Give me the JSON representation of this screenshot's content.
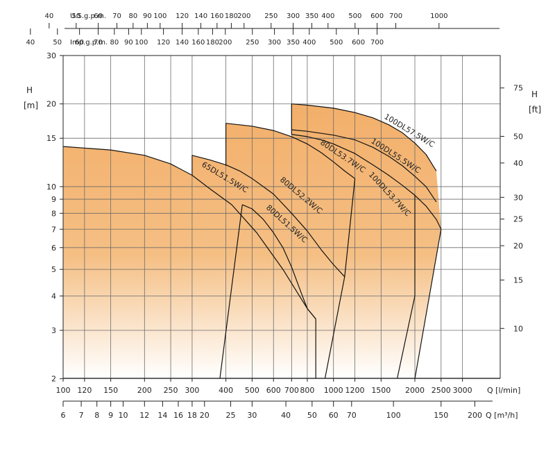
{
  "chart_data": {
    "type": "line",
    "title": "",
    "x_scale": "log",
    "y_scale": "log",
    "xlabel": "Q [l/min]",
    "ylabel": "H [m]",
    "ylabel_right": "H [ft]",
    "xlim": [
      100,
      3800
    ],
    "ylim": [
      2,
      30
    ],
    "x_ticks": [
      {
        "label": "100",
        "value": 100
      },
      {
        "label": "120",
        "value": 120
      },
      {
        "label": "150",
        "value": 150
      },
      {
        "label": "200",
        "value": 200
      },
      {
        "label": "250",
        "value": 250
      },
      {
        "label": "300",
        "value": 300
      },
      {
        "label": "400",
        "value": 400
      },
      {
        "label": "500",
        "value": 500
      },
      {
        "label": "600",
        "value": 600
      },
      {
        "label": "700",
        "value": 700
      },
      {
        "label": "800",
        "value": 800
      },
      {
        "label": "1000",
        "value": 1000
      },
      {
        "label": "1200",
        "value": 1200
      },
      {
        "label": "1500",
        "value": 1500
      },
      {
        "label": "2000",
        "value": 2000
      },
      {
        "label": "2500",
        "value": 2500
      },
      {
        "label": "3000",
        "value": 3000
      }
    ],
    "y_ticks": [
      {
        "label": "2",
        "value": 2
      },
      {
        "label": "3",
        "value": 3
      },
      {
        "label": "4",
        "value": 4
      },
      {
        "label": "5",
        "value": 5
      },
      {
        "label": "6",
        "value": 6
      },
      {
        "label": "7",
        "value": 7
      },
      {
        "label": "8",
        "value": 8
      },
      {
        "label": "9",
        "value": 9
      },
      {
        "label": "10",
        "value": 10
      },
      {
        "label": "15",
        "value": 15
      },
      {
        "label": "20",
        "value": 20
      },
      {
        "label": "30",
        "value": 30
      }
    ],
    "right_ticks": [
      {
        "label": "10",
        "value": 10
      },
      {
        "label": "15",
        "value": 15
      },
      {
        "label": "20",
        "value": 20
      },
      {
        "label": "25",
        "value": 25
      },
      {
        "label": "30",
        "value": 30
      },
      {
        "label": "40",
        "value": 40
      },
      {
        "label": "50",
        "value": 50
      },
      {
        "label": "75",
        "value": 75
      }
    ],
    "m3h_label": "Q [m³/h]",
    "m3h_ticks": [
      {
        "label": "6",
        "value": 6
      },
      {
        "label": "7",
        "value": 7
      },
      {
        "label": "8",
        "value": 8
      },
      {
        "label": "9",
        "value": 9
      },
      {
        "label": "10",
        "value": 10
      },
      {
        "label": "12",
        "value": 12
      },
      {
        "label": "14",
        "value": 14
      },
      {
        "label": "16",
        "value": 16
      },
      {
        "label": "18",
        "value": 18
      },
      {
        "label": "20",
        "value": 20
      },
      {
        "label": "25",
        "value": 25
      },
      {
        "label": "30",
        "value": 30
      },
      {
        "label": "40",
        "value": 40
      },
      {
        "label": "50",
        "value": 50
      },
      {
        "label": "60",
        "value": 60
      },
      {
        "label": "70",
        "value": 70
      },
      {
        "label": "100",
        "value": 100
      },
      {
        "label": "150",
        "value": 150
      },
      {
        "label": "200",
        "value": 200
      }
    ],
    "usgpm_label": "U.S.g.p.m.",
    "usgpm_ticks": [
      {
        "label": "40",
        "value": 40
      },
      {
        "label": "50",
        "value": 50
      },
      {
        "label": "60",
        "value": 60
      },
      {
        "label": "70",
        "value": 70
      },
      {
        "label": "80",
        "value": 80
      },
      {
        "label": "90",
        "value": 90
      },
      {
        "label": "100",
        "value": 100
      },
      {
        "label": "120",
        "value": 120
      },
      {
        "label": "140",
        "value": 140
      },
      {
        "label": "160",
        "value": 160
      },
      {
        "label": "180",
        "value": 180
      },
      {
        "label": "200",
        "value": 200
      },
      {
        "label": "250",
        "value": 250
      },
      {
        "label": "300",
        "value": 300
      },
      {
        "label": "350",
        "value": 350
      },
      {
        "label": "400",
        "value": 400
      },
      {
        "label": "500",
        "value": 500
      },
      {
        "label": "600",
        "value": 600
      },
      {
        "label": "700",
        "value": 700
      },
      {
        "label": "1000",
        "value": 1000
      }
    ],
    "impgpm_label": "Imp.g.p.m.",
    "impgpm_ticks": [
      {
        "label": "40",
        "value": 40
      },
      {
        "label": "50",
        "value": 50
      },
      {
        "label": "60",
        "value": 60
      },
      {
        "label": "70",
        "value": 70
      },
      {
        "label": "80",
        "value": 80
      },
      {
        "label": "90",
        "value": 90
      },
      {
        "label": "100",
        "value": 100
      },
      {
        "label": "120",
        "value": 120
      },
      {
        "label": "140",
        "value": 140
      },
      {
        "label": "160",
        "value": 160
      },
      {
        "label": "180",
        "value": 180
      },
      {
        "label": "200",
        "value": 200
      },
      {
        "label": "250",
        "value": 250
      },
      {
        "label": "300",
        "value": 300
      },
      {
        "label": "350",
        "value": 350
      },
      {
        "label": "400",
        "value": 400
      },
      {
        "label": "500",
        "value": 500
      },
      {
        "label": "600",
        "value": 600
      },
      {
        "label": "700",
        "value": 700
      }
    ],
    "series": [
      {
        "name": "65DL51.5W/C",
        "q": [
          100,
          150,
          200,
          250,
          300,
          350,
          420,
          520,
          650,
          800,
          860
        ],
        "h": [
          14,
          13.6,
          13.0,
          12.1,
          11.0,
          9.8,
          8.6,
          6.8,
          5.0,
          3.6,
          3.3
        ]
      },
      {
        "name": "80DL51.5W/C",
        "q": [
          460,
          500,
          550,
          600,
          650,
          700,
          760,
          800,
          860
        ],
        "h": [
          8.6,
          8.3,
          7.6,
          6.8,
          6.0,
          5.1,
          4.1,
          3.6,
          3.3
        ]
      },
      {
        "name": "80DL52.2W/C",
        "q": [
          300,
          350,
          400,
          450,
          500,
          600,
          700,
          800,
          900,
          1000,
          1100
        ],
        "h": [
          13.0,
          12.5,
          12.0,
          11.4,
          10.7,
          9.4,
          8.0,
          6.9,
          5.9,
          5.2,
          4.7
        ]
      },
      {
        "name": "80DL53.7W/C",
        "q": [
          400,
          500,
          600,
          700,
          800,
          900,
          1000,
          1100,
          1200
        ],
        "h": [
          17.0,
          16.6,
          16.0,
          15.2,
          14.3,
          13.3,
          12.3,
          11.4,
          10.7
        ]
      },
      {
        "name": "100DL53.7W/C",
        "q": [
          700,
          800,
          900,
          1000,
          1200,
          1400,
          1600,
          1800,
          2000,
          2200,
          2400,
          2500
        ],
        "h": [
          15.5,
          15.2,
          14.8,
          14.3,
          13.2,
          12.0,
          11.0,
          10.1,
          9.3,
          8.5,
          7.6,
          7.0
        ]
      },
      {
        "name": "100DL55.5W/C",
        "q": [
          700,
          800,
          1000,
          1200,
          1400,
          1600,
          1800,
          2000,
          2200,
          2400
        ],
        "h": [
          16.1,
          15.9,
          15.4,
          14.8,
          13.9,
          12.9,
          11.9,
          10.9,
          10.0,
          8.8
        ]
      },
      {
        "name": "100DL57.5W/C",
        "q": [
          700,
          800,
          1000,
          1200,
          1400,
          1600,
          1800,
          2000,
          2200,
          2400
        ],
        "h": [
          20.0,
          19.8,
          19.3,
          18.6,
          17.8,
          16.8,
          15.7,
          14.4,
          13.1,
          11.4
        ]
      }
    ]
  }
}
